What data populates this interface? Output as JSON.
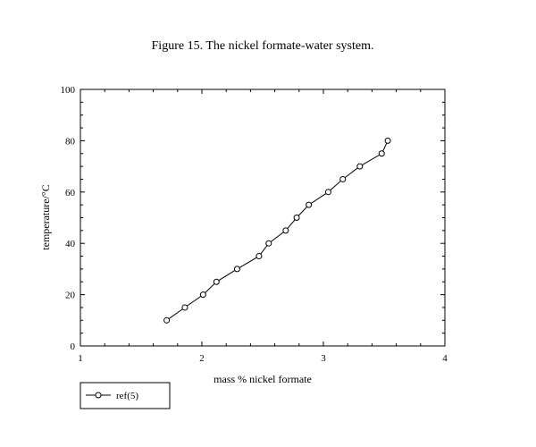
{
  "chart_data": {
    "type": "line",
    "title": "Figure 15. The nickel formate-water system.",
    "xlabel": "mass % nickel formate",
    "ylabel": "temperature/°C",
    "xlim": [
      1,
      4
    ],
    "ylim": [
      0,
      100
    ],
    "x_ticks": [
      1,
      2,
      3,
      4
    ],
    "y_ticks": [
      0,
      20,
      40,
      60,
      80,
      100
    ],
    "grid": false,
    "legend_position": "bottom-left",
    "series": [
      {
        "name": "ref(5)",
        "marker": "open-circle",
        "color": "#000000",
        "x": [
          1.71,
          1.86,
          2.01,
          2.12,
          2.29,
          2.47,
          2.55,
          2.69,
          2.78,
          2.88,
          3.04,
          3.16,
          3.3,
          3.48,
          3.53
        ],
        "y": [
          10,
          15,
          20,
          25,
          30,
          35,
          40,
          45,
          50,
          55,
          60,
          65,
          70,
          75,
          80
        ]
      }
    ]
  }
}
